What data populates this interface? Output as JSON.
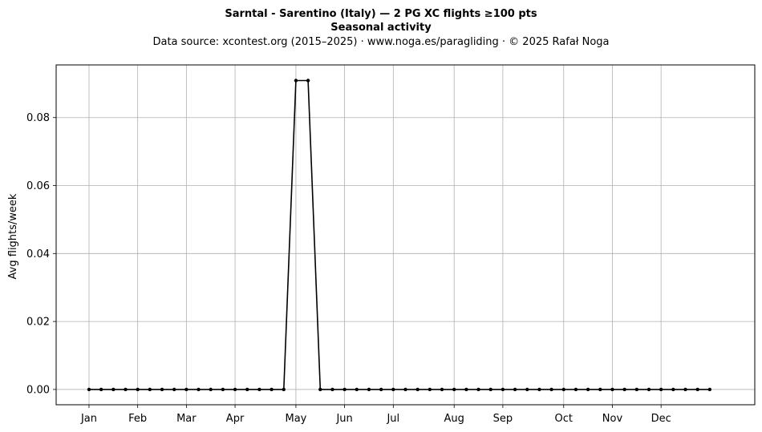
{
  "chart_data": {
    "type": "line",
    "title": "Sarntal - Sarentino (Italy)  —  2 PG XC flights ≥100 pts",
    "subtitle": "Seasonal activity",
    "source_line": "Data source: xcontest.org (2015–2025)  ·  www.noga.es/paragliding  ·  © 2025 Rafał Noga",
    "xlabel": "",
    "ylabel": "Avg flights/week",
    "grid": true,
    "ylim": [
      -0.0045,
      0.0955
    ],
    "xlim": [
      -2.7,
      54.7
    ],
    "x_ticks": [
      {
        "label": "Jan",
        "week": 0
      },
      {
        "label": "Feb",
        "week": 4
      },
      {
        "label": "Mar",
        "week": 8
      },
      {
        "label": "Apr",
        "week": 12
      },
      {
        "label": "May",
        "week": 17
      },
      {
        "label": "Jun",
        "week": 21
      },
      {
        "label": "Jul",
        "week": 25
      },
      {
        "label": "Aug",
        "week": 30
      },
      {
        "label": "Sep",
        "week": 34
      },
      {
        "label": "Oct",
        "week": 39
      },
      {
        "label": "Nov",
        "week": 43
      },
      {
        "label": "Dec",
        "week": 47
      }
    ],
    "y_ticks": [
      "0.00",
      "0.02",
      "0.04",
      "0.06",
      "0.08"
    ],
    "y_tick_values": [
      0,
      0.02,
      0.04,
      0.06,
      0.08
    ],
    "series": [
      {
        "color": "#000000",
        "x": [
          0,
          1,
          2,
          3,
          4,
          5,
          6,
          7,
          8,
          9,
          10,
          11,
          12,
          13,
          14,
          15,
          16,
          17,
          18,
          19,
          20,
          21,
          22,
          23,
          24,
          25,
          26,
          27,
          28,
          29,
          30,
          31,
          32,
          33,
          34,
          35,
          36,
          37,
          38,
          39,
          40,
          41,
          42,
          43,
          44,
          45,
          46,
          47,
          48,
          49,
          50,
          51
        ],
        "values": [
          0,
          0,
          0,
          0,
          0,
          0,
          0,
          0,
          0,
          0,
          0,
          0,
          0,
          0,
          0,
          0,
          0,
          0.0909,
          0.0909,
          0,
          0,
          0,
          0,
          0,
          0,
          0,
          0,
          0,
          0,
          0,
          0,
          0,
          0,
          0,
          0,
          0,
          0,
          0,
          0,
          0,
          0,
          0,
          0,
          0,
          0,
          0,
          0,
          0,
          0,
          0,
          0,
          0
        ]
      }
    ]
  }
}
